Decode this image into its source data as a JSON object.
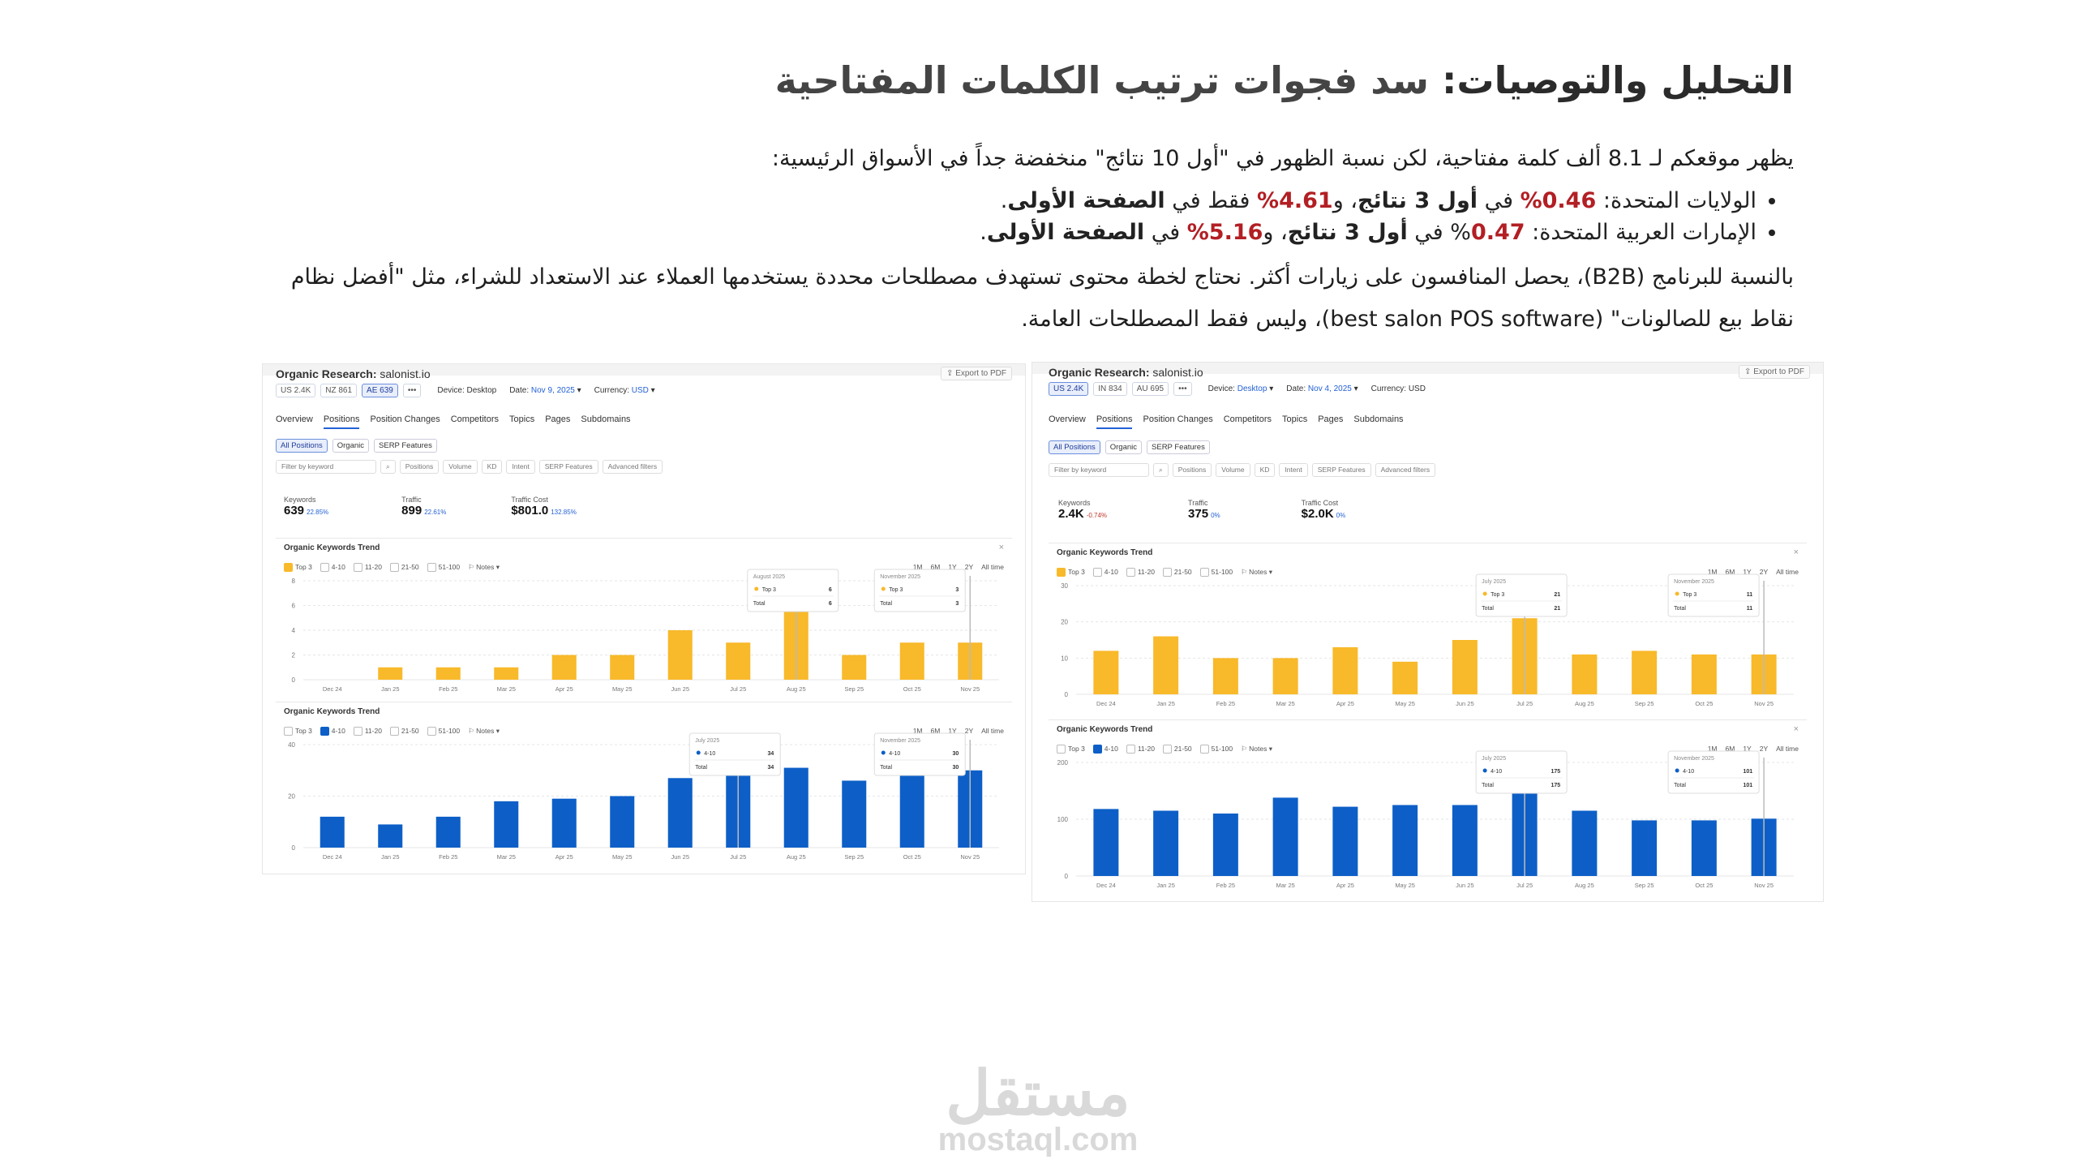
{
  "title_bold": "التحليل والتوصيات:",
  "title_rest": " سد فجوات ترتيب الكلمات المفتاحية",
  "intro": "يظهر موقعكم لـ 8.1 ألف كلمة مفتاحية، لكن نسبة الظهور في \"أول 10 نتائج\" منخفضة جداً في الأسواق الرئيسية:",
  "bullet1": {
    "a": "الولايات المتحدة: ",
    "p1": "0.46%",
    "b": " في ",
    "c": "أول 3 نتائج",
    "d": "، و",
    "p2": "4.61%",
    "e": " فقط في ",
    "f": "الصفحة الأولى",
    "g": "."
  },
  "bullet2": {
    "a": "الإمارات العربية المتحدة: ",
    "p1": "0.47",
    "b": "% في ",
    "c": "أول 3 نتائج",
    "d": "، و",
    "p2": "5.16%",
    "e": " في ",
    "f": "الصفحة الأولى",
    "g": "."
  },
  "para_b2b_1": "بالنسبة للبرنامج (B2B)، يحصل المنافسون على زيارات أكثر. نحتاج لخطة محتوى تستهدف مصطلحات محددة يستخدمها العملاء عند الاستعداد للشراء، مثل \"أفضل نظام",
  "para_b2b_2": "نقاط بيع للصالونات\" (best salon POS software)، وليس فقط المصطلحات العامة.",
  "ui": {
    "heading": "Organic Research:",
    "site": "salonist.io",
    "export": "Export to PDF",
    "device_label": "Device:",
    "device": "Desktop",
    "date_label": "Date:",
    "currency_label": "Currency:",
    "currency": "USD",
    "more": "•••",
    "tabs": [
      "Overview",
      "Positions",
      "Position Changes",
      "Competitors",
      "Topics",
      "Pages",
      "Subdomains"
    ],
    "subtabs": [
      "All Positions",
      "Organic",
      "SERP Features"
    ],
    "filters": [
      "Filter by keyword",
      "Positions",
      "Volume",
      "KD",
      "Intent",
      "SERP Features",
      "Advanced filters"
    ],
    "metric_labels": [
      "Keywords",
      "Traffic",
      "Traffic Cost"
    ],
    "chart_title": "Organic Keywords Trend",
    "legend": [
      "Top 3",
      "4-10",
      "11-20",
      "21-50",
      "51-100",
      "Notes"
    ],
    "periods": [
      "1M",
      "6M",
      "1Y",
      "2Y",
      "All time"
    ],
    "months": [
      "Dec 24",
      "Jan 25",
      "Feb 25",
      "Mar 25",
      "Apr 25",
      "May 25",
      "Jun 25",
      "Jul 25",
      "Aug 25",
      "Sep 25",
      "Oct 25",
      "Nov 25"
    ],
    "close": "×",
    "total": "Total"
  },
  "left_panel": {
    "dbs": [
      "US 2.4K",
      "NZ 861",
      "AE 639"
    ],
    "date": "Nov 9, 2025",
    "metrics": [
      {
        "v": "639",
        "d": "22.85%"
      },
      {
        "v": "899",
        "d": "22.61%"
      },
      {
        "v": "$801.0",
        "d": "132.85%"
      }
    ],
    "tip_top": {
      "month": "August 2025",
      "label": "Top 3",
      "value": "6",
      "total": "6"
    },
    "tip_top2": {
      "month": "November 2025",
      "label": "Top 3",
      "value": "3",
      "total": "3"
    },
    "tip_bot": {
      "month": "July 2025",
      "label": "4-10",
      "value": "34",
      "total": "34"
    },
    "tip_bot2": {
      "month": "November 2025",
      "label": "4-10",
      "value": "30",
      "total": "30"
    }
  },
  "right_panel": {
    "dbs": [
      "US 2.4K",
      "IN 834",
      "AU 695"
    ],
    "date": "Nov 4, 2025",
    "metrics": [
      {
        "v": "2.4K",
        "d": "-0.74%"
      },
      {
        "v": "375",
        "d": "0%"
      },
      {
        "v": "$2.0K",
        "d": "0%"
      }
    ],
    "tip_top": {
      "month": "July 2025",
      "label": "Top 3",
      "value": "21",
      "total": "21"
    },
    "tip_top2": {
      "month": "November 2025",
      "label": "Top 3",
      "value": "11",
      "total": "11"
    },
    "tip_bot": {
      "month": "July 2025",
      "label": "4-10",
      "value": "175",
      "total": "175"
    },
    "tip_bot2": {
      "month": "November 2025",
      "label": "4-10",
      "value": "101",
      "total": "101"
    }
  },
  "logo": {
    "arabic": "مستقل",
    "latin": "mostaql.com"
  },
  "colors": {
    "top3": "#f8b92a",
    "pos4_10": "#0d5fc7",
    "accent": "#b21f24"
  },
  "chart_data": [
    {
      "type": "bar",
      "title": "Organic Keywords Trend",
      "series": [
        {
          "name": "Top 3",
          "values": [
            0,
            1,
            1,
            1,
            2,
            2,
            4,
            3,
            6,
            2,
            3,
            3
          ]
        }
      ],
      "categories": [
        "Dec 24",
        "Jan 25",
        "Feb 25",
        "Mar 25",
        "Apr 25",
        "May 25",
        "Jun 25",
        "Jul 25",
        "Aug 25",
        "Sep 25",
        "Oct 25",
        "Nov 25"
      ],
      "ylim": [
        0,
        8
      ],
      "yticks": [
        0,
        2,
        4,
        6,
        8
      ]
    },
    {
      "type": "bar",
      "title": "Organic Keywords Trend",
      "series": [
        {
          "name": "4-10",
          "values": [
            12,
            9,
            12,
            18,
            19,
            20,
            27,
            34,
            31,
            26,
            30,
            30
          ]
        }
      ],
      "categories": [
        "Dec 24",
        "Jan 25",
        "Feb 25",
        "Mar 25",
        "Apr 25",
        "May 25",
        "Jun 25",
        "Jul 25",
        "Aug 25",
        "Sep 25",
        "Oct 25",
        "Nov 25"
      ],
      "ylim": [
        0,
        40
      ],
      "yticks": [
        0,
        20,
        40
      ]
    },
    {
      "type": "bar",
      "title": "Organic Keywords Trend",
      "series": [
        {
          "name": "Top 3",
          "values": [
            12,
            16,
            10,
            10,
            13,
            9,
            15,
            21,
            11,
            12,
            11,
            11
          ]
        }
      ],
      "categories": [
        "Dec 24",
        "Jan 25",
        "Feb 25",
        "Mar 25",
        "Apr 25",
        "May 25",
        "Jun 25",
        "Jul 25",
        "Aug 25",
        "Sep 25",
        "Oct 25",
        "Nov 25"
      ],
      "ylim": [
        0,
        30
      ],
      "yticks": [
        0,
        10,
        20,
        30
      ]
    },
    {
      "type": "bar",
      "title": "Organic Keywords Trend",
      "series": [
        {
          "name": "4-10",
          "values": [
            118,
            115,
            110,
            138,
            122,
            125,
            125,
            175,
            115,
            98,
            98,
            101
          ]
        }
      ],
      "categories": [
        "Dec 24",
        "Jan 25",
        "Feb 25",
        "Mar 25",
        "Apr 25",
        "May 25",
        "Jun 25",
        "Jul 25",
        "Aug 25",
        "Sep 25",
        "Oct 25",
        "Nov 25"
      ],
      "ylim": [
        0,
        200
      ],
      "yticks": [
        0,
        100,
        200
      ]
    }
  ]
}
